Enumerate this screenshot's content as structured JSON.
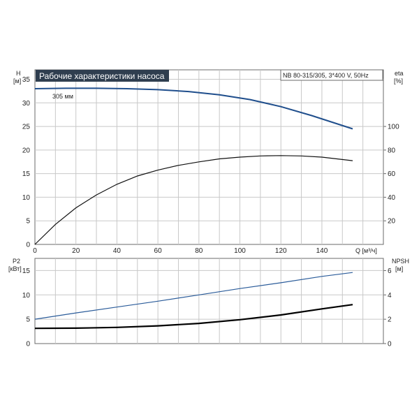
{
  "title": "Рабочие характеристики насоса",
  "model": "NB 80-315/305, 3*400 V, 50Hz",
  "colors": {
    "title_bg": "#2f3e4f",
    "title_fg": "#ffffff",
    "head": "#1f4e8c",
    "p2": "#2b5c9a",
    "eta": "#111111",
    "npsh": "#000000"
  },
  "axes": {
    "h_label": "H",
    "h_unit": "[м]",
    "eta_label": "eta",
    "eta_unit": "[%]",
    "q_label": "Q [м³/ч]",
    "p2_label": "P2",
    "p2_unit": "[кВт]",
    "npsh_label": "NPSH",
    "npsh_unit": "[м]"
  },
  "chart_data": [
    {
      "type": "line",
      "name": "top",
      "x_ticks": [
        0,
        20,
        40,
        60,
        80,
        100,
        120,
        140
      ],
      "xlim": [
        0,
        170
      ],
      "y_left_ticks": [
        0,
        5,
        10,
        15,
        20,
        25,
        30,
        35
      ],
      "ylim_left": [
        0,
        37
      ],
      "y_right_ticks": [
        20,
        40,
        60,
        80,
        100
      ],
      "ylim_right": [
        0,
        148
      ],
      "series": [
        {
          "name": "305 мм",
          "axis": "left",
          "x": [
            0,
            15,
            30,
            45,
            60,
            75,
            90,
            105,
            120,
            135,
            155
          ],
          "y": [
            33.0,
            33.1,
            33.1,
            33.0,
            32.8,
            32.4,
            31.7,
            30.7,
            29.2,
            27.3,
            24.5
          ]
        },
        {
          "axis": "right",
          "x": [
            0,
            10,
            20,
            30,
            40,
            50,
            60,
            70,
            80,
            90,
            100,
            110,
            120,
            130,
            140,
            155
          ],
          "y": [
            0,
            17,
            31,
            42,
            51,
            58,
            63,
            67,
            70,
            72.5,
            74,
            75,
            75.3,
            75,
            74,
            71
          ]
        }
      ]
    },
    {
      "type": "line",
      "name": "bottom",
      "xlim": [
        0,
        170
      ],
      "y_left_ticks": [
        0,
        5,
        10,
        15
      ],
      "ylim_left": [
        0,
        17.5
      ],
      "y_right_ticks": [
        0,
        2,
        4,
        6
      ],
      "ylim_right": [
        0,
        7
      ],
      "series": [
        {
          "axis": "left",
          "x": [
            0,
            20,
            40,
            60,
            80,
            100,
            120,
            140,
            155
          ],
          "y": [
            5.0,
            6.3,
            7.5,
            8.7,
            10.0,
            11.3,
            12.5,
            13.8,
            14.6
          ]
        },
        {
          "axis": "right",
          "x": [
            0,
            20,
            40,
            60,
            80,
            100,
            120,
            140,
            155
          ],
          "y": [
            1.25,
            1.27,
            1.33,
            1.46,
            1.66,
            1.96,
            2.35,
            2.85,
            3.2
          ]
        }
      ]
    }
  ]
}
